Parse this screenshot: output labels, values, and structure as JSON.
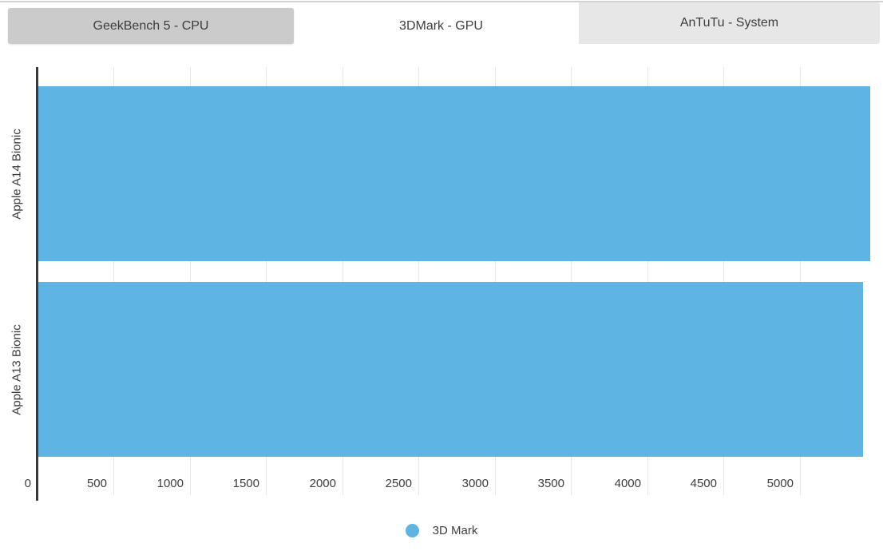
{
  "tabs": [
    {
      "label": "GeekBench 5 - CPU",
      "slug": "geekbench-5-cpu",
      "active": false,
      "style": "dark"
    },
    {
      "label": "3DMark - GPU",
      "slug": "3dmark-gpu",
      "active": true,
      "style": "active"
    },
    {
      "label": "AnTuTu - System",
      "slug": "antutu-system",
      "active": false,
      "style": "light"
    }
  ],
  "chart_data": {
    "type": "bar",
    "orientation": "horizontal",
    "title": "",
    "xlabel": "",
    "ylabel": "",
    "categories": [
      "Apple A14 Bionic",
      "Apple A13 Bionic"
    ],
    "series": [
      {
        "name": "3D Mark",
        "values": [
          5460,
          5410
        ]
      }
    ],
    "xlim": [
      0,
      5500
    ],
    "tick_step": 500,
    "tick_labels": [
      0,
      500,
      1000,
      1500,
      2000,
      2500,
      3000,
      3500,
      4000,
      4500,
      5000
    ],
    "grid": true,
    "legend_position": "bottom"
  },
  "legend": {
    "items": [
      {
        "label": "3D Mark",
        "color": "#5eb5e4"
      }
    ]
  },
  "colors": {
    "bar": "#5eb5e4",
    "grid": "#e8e8e8",
    "axis": "#3a3a3a",
    "text": "#3d3d3d",
    "tab_dark": "#cbcbcb",
    "tab_light": "#e7e7e7",
    "tab_active": "#ffffff",
    "top_line": "#d2d2d2"
  }
}
